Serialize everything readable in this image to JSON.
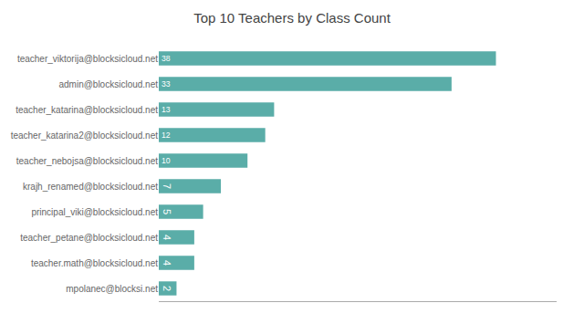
{
  "chart_data": {
    "type": "bar",
    "orientation": "horizontal",
    "title": "Top 10 Teachers by Class Count",
    "categories": [
      "teacher_viktorija@blocksicloud.net",
      "admin@blocksicloud.net",
      "teacher_katarina@blocksicloud.net",
      "teacher_katarina2@blocksicloud.net",
      "teacher_nebojsa@blocksicloud.net",
      "krajh_renamed@blocksicloud.net",
      "principal_viki@blocksicloud.net",
      "teacher_petane@blocksicloud.net",
      "teacher.math@blocksicloud.net",
      "mpolanec@blocksi.net"
    ],
    "values": [
      38,
      33,
      13,
      12,
      10,
      7,
      5,
      4,
      4,
      2
    ],
    "color": "#5aada8",
    "xlim": [
      0,
      44.84
    ],
    "grid": false,
    "data_labels": true,
    "tick_labels": "y"
  }
}
